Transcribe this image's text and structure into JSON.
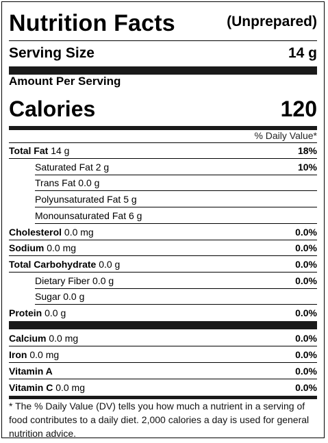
{
  "label": {
    "title": "Nutrition Facts",
    "subtitle": "(Unprepared)",
    "serving_size_label": "Serving Size",
    "serving_size_value": "14 g",
    "amount_per_serving": "Amount Per Serving",
    "calories_label": "Calories",
    "calories_value": "120",
    "dv_header": "% Daily Value*",
    "nutrients": [
      {
        "name": "Total Fat",
        "amount": "14 g",
        "pct": "18%",
        "bold_name": true,
        "indent": false
      },
      {
        "name": "Saturated Fat",
        "amount": "2 g",
        "pct": "10%",
        "bold_name": false,
        "indent": true
      },
      {
        "name": "Trans Fat",
        "amount": "0.0 g",
        "pct": "",
        "bold_name": false,
        "indent": true
      },
      {
        "name": "Polyunsaturated Fat",
        "amount": "5 g",
        "pct": "",
        "bold_name": false,
        "indent": true
      },
      {
        "name": "Monounsaturated Fat",
        "amount": "6 g",
        "pct": "",
        "bold_name": false,
        "indent": true
      },
      {
        "name": "Cholesterol",
        "amount": "0.0 mg",
        "pct": "0.0%",
        "bold_name": true,
        "indent": false
      },
      {
        "name": "Sodium",
        "amount": "0.0 mg",
        "pct": "0.0%",
        "bold_name": true,
        "indent": false
      },
      {
        "name": "Total Carbohydrate",
        "amount": "0.0 g",
        "pct": "0.0%",
        "bold_name": true,
        "indent": false
      },
      {
        "name": "Dietary Fiber",
        "amount": "0.0 g",
        "pct": "0.0%",
        "bold_name": false,
        "indent": true
      },
      {
        "name": "Sugar",
        "amount": "0.0 g",
        "pct": "",
        "bold_name": false,
        "indent": true
      },
      {
        "name": "Protein",
        "amount": "0.0 g",
        "pct": "0.0%",
        "bold_name": true,
        "indent": false
      }
    ],
    "vitamins": [
      {
        "name": "Calcium",
        "amount": "0.0 mg",
        "pct": "0.0%"
      },
      {
        "name": "Iron",
        "amount": "0.0 mg",
        "pct": "0.0%"
      },
      {
        "name": "Vitamin A",
        "amount": "",
        "pct": "0.0%"
      },
      {
        "name": "Vitamin C",
        "amount": "0.0 mg",
        "pct": "0.0%"
      }
    ],
    "footnote": "* The % Daily Value (DV) tells you how much a nutrient in a serving of food contributes to a daily diet. 2,000 calories a day is used for general nutrition advice."
  }
}
